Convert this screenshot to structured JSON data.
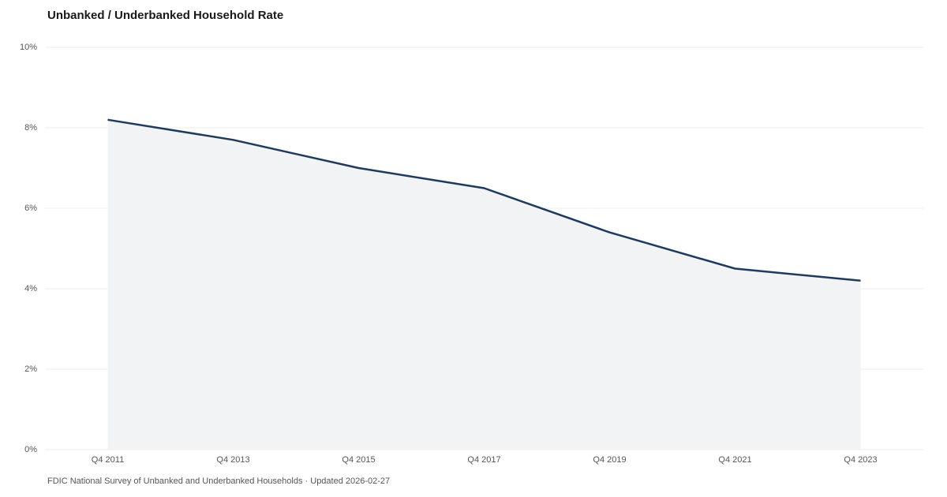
{
  "chart_data": {
    "type": "area",
    "title": "Unbanked / Underbanked Household Rate",
    "source": "FDIC National Survey of Unbanked and Underbanked Households · Updated 2026-02-27",
    "categories": [
      "Q4 2011",
      "Q4 2013",
      "Q4 2015",
      "Q4 2017",
      "Q4 2019",
      "Q4 2021",
      "Q4 2023"
    ],
    "values": [
      8.2,
      7.7,
      7.0,
      6.5,
      5.4,
      4.5,
      4.2
    ],
    "color": "#1f3a5f",
    "fill_color": "#f1f3f5",
    "ylim": [
      0,
      10
    ],
    "yticks": [
      {
        "value": 0,
        "label": "0%"
      },
      {
        "value": 2,
        "label": "2%"
      },
      {
        "value": 4,
        "label": "4%"
      },
      {
        "value": 6,
        "label": "6%"
      },
      {
        "value": 8,
        "label": "8%"
      },
      {
        "value": 10,
        "label": "10%"
      }
    ],
    "grid": true
  }
}
